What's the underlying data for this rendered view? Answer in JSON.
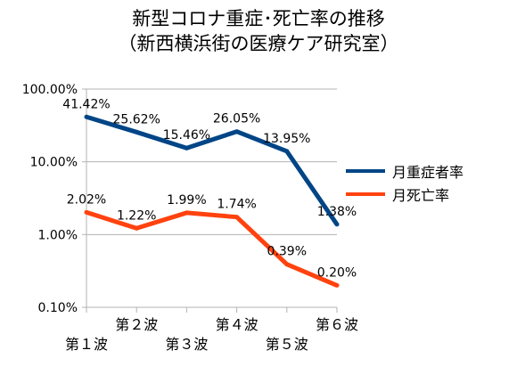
{
  "title": "新型コロナ重症･死亡率の推移",
  "subtitle": "（新西横浜街の医療ケア研究室）",
  "chart_data": {
    "type": "line",
    "y_scale": "log",
    "ylim": [
      0.1,
      100
    ],
    "y_ticks": [
      {
        "value": 100,
        "label": "100.00%"
      },
      {
        "value": 10,
        "label": "10.00%"
      },
      {
        "value": 1,
        "label": "1.00%"
      },
      {
        "value": 0.1,
        "label": "0.10%"
      }
    ],
    "categories": [
      "第１波",
      "第２波",
      "第３波",
      "第４波",
      "第５波",
      "第６波"
    ],
    "legend_position": "right",
    "grid": "horizontal",
    "series": [
      {
        "name": "月重症者率",
        "color": "#004586",
        "values": [
          41.42,
          25.62,
          15.46,
          26.05,
          13.95,
          1.38
        ],
        "labels": [
          "41.42%",
          "25.62%",
          "15.46%",
          "26.05%",
          "13.95%",
          "1.38%"
        ]
      },
      {
        "name": "月死亡率",
        "color": "#ff420e",
        "values": [
          2.02,
          1.22,
          1.99,
          1.74,
          0.39,
          0.2
        ],
        "labels": [
          "2.02%",
          "1.22%",
          "1.99%",
          "1.74%",
          "0.39%",
          "0.20%"
        ]
      }
    ]
  }
}
